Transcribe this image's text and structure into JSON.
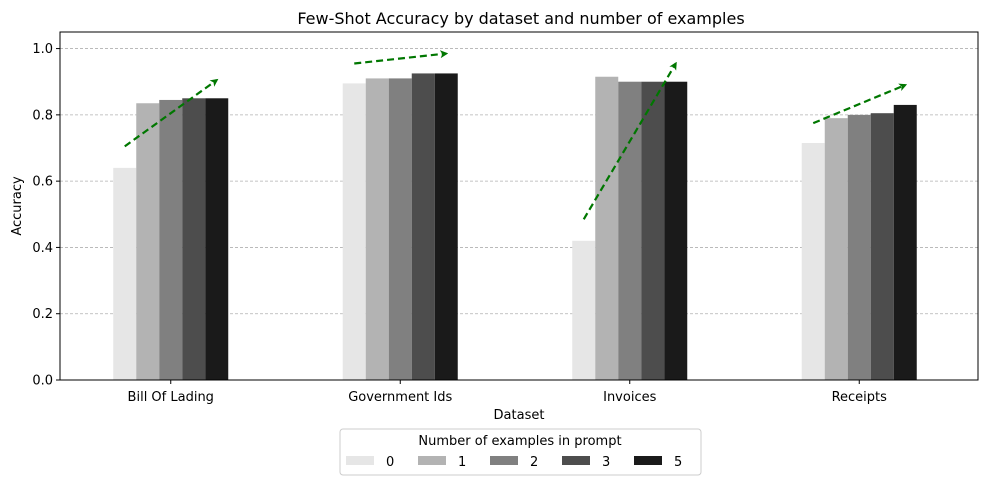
{
  "chart_data": {
    "type": "bar",
    "title": "Few-Shot Accuracy by dataset and number of examples",
    "xlabel": "Dataset",
    "ylabel": "Accuracy",
    "ylim": [
      0,
      1.05
    ],
    "yticks": [
      "0.0",
      "0.2",
      "0.4",
      "0.6",
      "0.8",
      "1.0"
    ],
    "ytick_values": [
      0,
      0.2,
      0.4,
      0.6,
      0.8,
      1.0
    ],
    "grid": "y-dashed",
    "categories": [
      "Bill Of Lading",
      "Government Ids",
      "Invoices",
      "Receipts"
    ],
    "legend": {
      "title": "Number of examples in prompt",
      "placement": "bottom-center"
    },
    "series": [
      {
        "name": "0",
        "color": "#e6e6e6",
        "values": [
          0.64,
          0.895,
          0.42,
          0.715
        ]
      },
      {
        "name": "1",
        "color": "#b3b3b3",
        "values": [
          0.835,
          0.91,
          0.915,
          0.79
        ]
      },
      {
        "name": "2",
        "color": "#808080",
        "values": [
          0.845,
          0.91,
          0.9,
          0.8
        ]
      },
      {
        "name": "3",
        "color": "#4d4d4d",
        "values": [
          0.85,
          0.925,
          0.9,
          0.805
        ]
      },
      {
        "name": "5",
        "color": "#1a1a1a",
        "values": [
          0.85,
          0.925,
          0.9,
          0.83
        ]
      }
    ],
    "trend_arrows": {
      "color": "#007700",
      "style": "dashed",
      "lines": [
        {
          "category": "Bill Of Lading",
          "y_start": 0.705,
          "y_end": 0.905
        },
        {
          "category": "Government Ids",
          "y_start": 0.955,
          "y_end": 0.985
        },
        {
          "category": "Invoices",
          "y_start": 0.485,
          "y_end": 0.955
        },
        {
          "category": "Receipts",
          "y_start": 0.775,
          "y_end": 0.89
        }
      ]
    }
  }
}
